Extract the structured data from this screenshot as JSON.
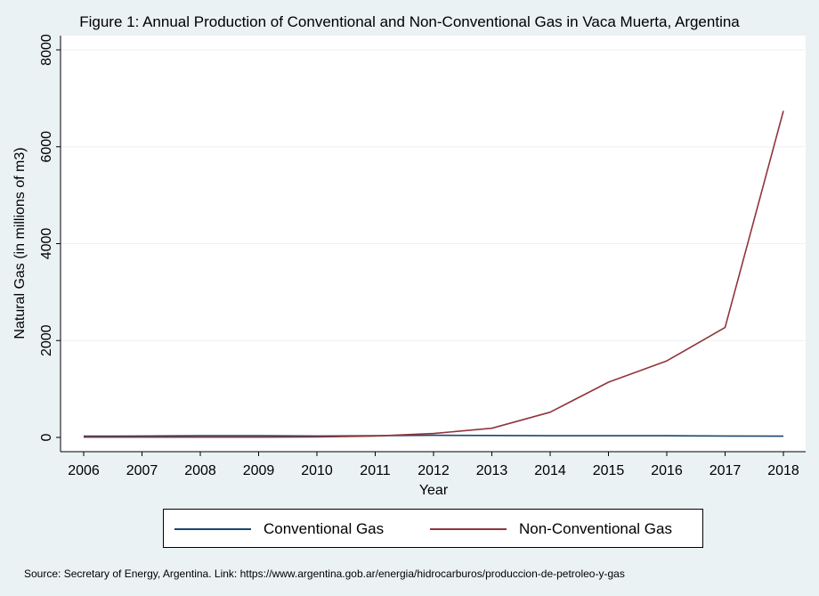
{
  "title": "Figure 1: Annual Production of Conventional and Non-Conventional Gas in Vaca Muerta, Argentina",
  "source": "Source: Secretary of Energy, Argentina. Link: https://www.argentina.gob.ar/energia/hidrocarburos/produccion-de-petroleo-y-gas",
  "chart_data": {
    "type": "line",
    "title": "Figure 1: Annual Production of Conventional and Non-Conventional Gas in Vaca Muerta, Argentina",
    "xlabel": "Year",
    "ylabel": "Natural Gas (in millions of m3)",
    "x": [
      2006,
      2007,
      2008,
      2009,
      2010,
      2011,
      2012,
      2013,
      2014,
      2015,
      2016,
      2017,
      2018
    ],
    "ylim": [
      0,
      8000
    ],
    "yticks": [
      0,
      2000,
      4000,
      6000,
      8000
    ],
    "grid": true,
    "legend": "bottom",
    "series": [
      {
        "name": "Conventional Gas",
        "color": "#1a476f",
        "values": [
          25,
          30,
          35,
          35,
          30,
          35,
          45,
          40,
          35,
          35,
          35,
          30,
          25
        ]
      },
      {
        "name": "Non-Conventional Gas",
        "color": "#90353b",
        "values": [
          5,
          5,
          5,
          5,
          10,
          30,
          80,
          190,
          520,
          1140,
          1580,
          2270,
          6740
        ]
      }
    ]
  }
}
